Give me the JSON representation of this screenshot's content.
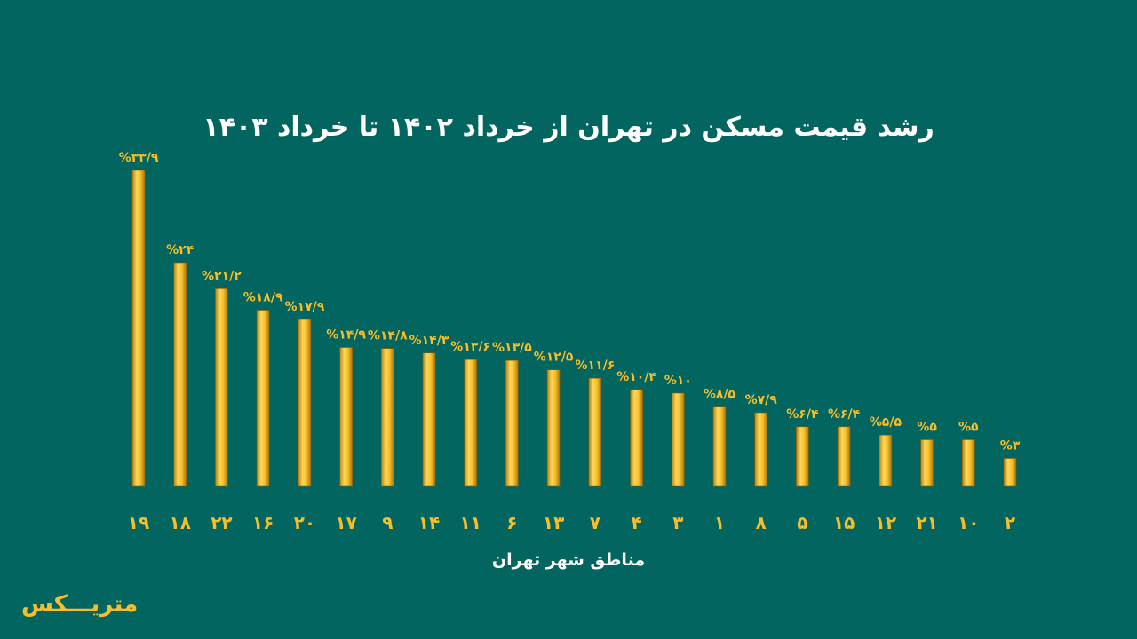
{
  "colors": {
    "background": "#03655f",
    "bar": "#f7be2a",
    "bar_dark": "#b8840f",
    "label": "#f7be2a",
    "text": "#ffffff"
  },
  "logo": "متریـــکس",
  "chart_data": {
    "type": "bar",
    "title": "رشد قیمت مسکن در تهران از خرداد ۱۴۰۲ تا خرداد ۱۴۰۳",
    "xlabel": "مناطق شهر تهران",
    "ylabel": "",
    "categories": [
      "۱۹",
      "۱۸",
      "۲۲",
      "۱۶",
      "۲۰",
      "۱۷",
      "۹",
      "۱۴",
      "۱۱",
      "۶",
      "۱۳",
      "۷",
      "۴",
      "۳",
      "۱",
      "۸",
      "۵",
      "۱۵",
      "۱۲",
      "۲۱",
      "۱۰",
      "۲"
    ],
    "values": [
      33.9,
      24,
      21.2,
      18.9,
      17.9,
      14.9,
      14.8,
      14.3,
      13.6,
      13.5,
      12.5,
      11.6,
      10.4,
      10,
      8.5,
      7.9,
      6.4,
      6.4,
      5.5,
      5,
      5,
      3
    ],
    "data_labels": [
      "%۳۳/۹",
      "%۲۴",
      "%۲۱/۲",
      "%۱۸/۹",
      "%۱۷/۹",
      "%۱۴/۹",
      "%۱۴/۸",
      "%۱۴/۳",
      "%۱۳/۶",
      "%۱۳/۵",
      "%۱۲/۵",
      "%۱۱/۶",
      "%۱۰/۴",
      "%۱۰",
      "%۸/۵",
      "%۷/۹",
      "%۶/۴",
      "%۶/۴",
      "%۵/۵",
      "%۵",
      "%۵",
      "%۳"
    ],
    "ylim": [
      0,
      34
    ],
    "grid": false,
    "legend": "none"
  }
}
